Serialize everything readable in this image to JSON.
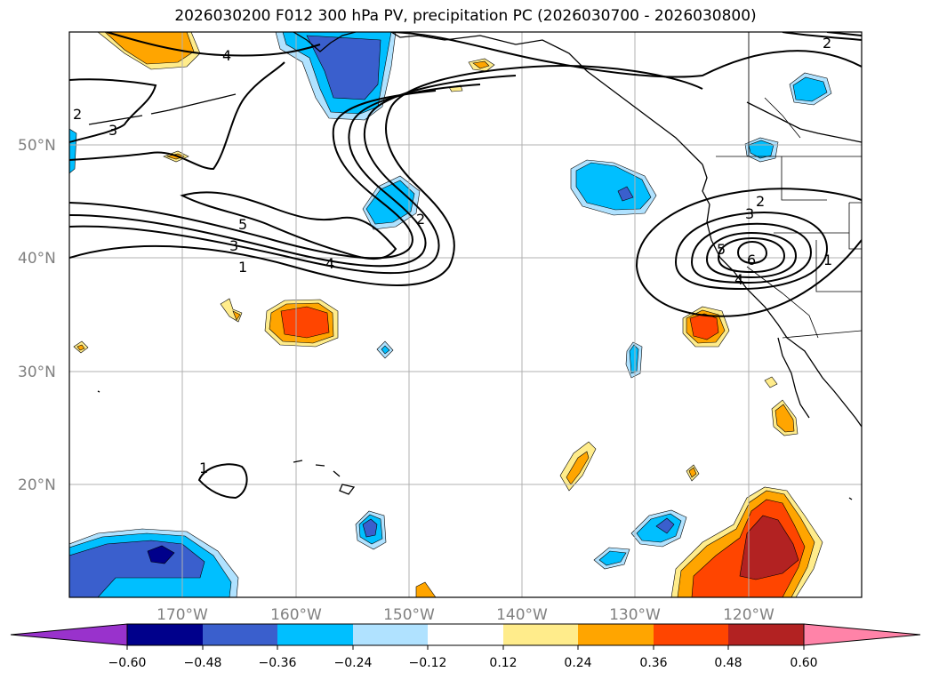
{
  "title": "2026030200 F012 300 hPa PV, precipitation PC (2026030700 - 2026030800)",
  "map": {
    "lat_labels": [
      "50°N",
      "40°N",
      "30°N",
      "20°N"
    ],
    "lon_labels": [
      "170°W",
      "160°W",
      "150°W",
      "140°W",
      "130°W",
      "120°W"
    ],
    "pv_contour_labels": [
      "4",
      "3",
      "2",
      "5",
      "3",
      "1",
      "4",
      "2",
      "2",
      "3",
      "5",
      "6",
      "4",
      "1",
      "1",
      "2"
    ]
  },
  "colorbar": {
    "ticks": [
      "−0.60",
      "−0.48",
      "−0.36",
      "−0.24",
      "−0.12",
      "0.12",
      "0.24",
      "0.36",
      "0.48",
      "0.60"
    ],
    "colors": [
      "#9932CC",
      "#00008B",
      "#3A5FCD",
      "#00BFFF",
      "#B0E2FF",
      "#FFFFFF",
      "#FFEC8B",
      "#FFA500",
      "#FF4500",
      "#B22222",
      "#FF83A8"
    ]
  },
  "colors": {
    "blue_light": "#B0E2FF",
    "blue": "#00BFFF",
    "blue_dark": "#3A5FCD",
    "navy": "#00008B",
    "yellow": "#FFEC8B",
    "orange": "#FFA500",
    "red_orange": "#FF4500",
    "firebrick": "#B22222"
  }
}
